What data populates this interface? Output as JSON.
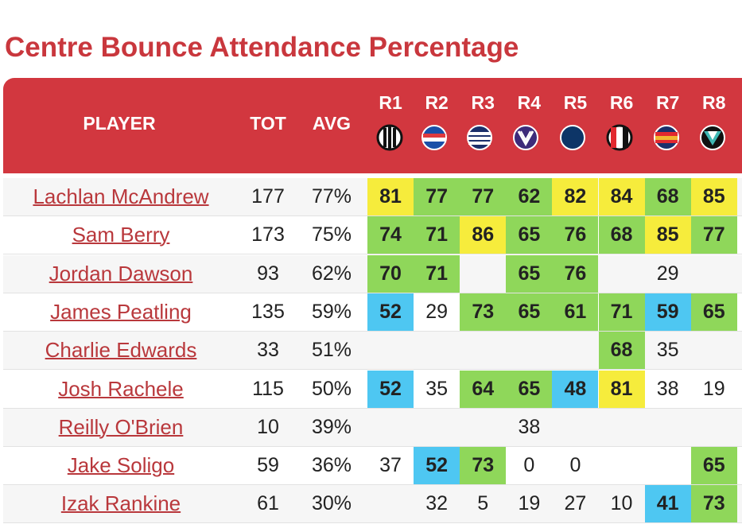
{
  "title": "Centre Bounce Attendance Percentage",
  "table": {
    "header": {
      "player": "PLAYER",
      "tot": "TOT",
      "avg": "AVG",
      "rounds": [
        "R1",
        "R2",
        "R3",
        "R4",
        "R5",
        "R6",
        "R7",
        "R8"
      ]
    },
    "rows": [
      {
        "player": "Lachlan McAndrew",
        "tot": 177,
        "avg": "77%",
        "rounds": [
          81,
          77,
          77,
          62,
          82,
          84,
          68,
          85
        ]
      },
      {
        "player": "Sam Berry",
        "tot": 173,
        "avg": "75%",
        "rounds": [
          74,
          71,
          86,
          65,
          76,
          68,
          85,
          77
        ]
      },
      {
        "player": "Jordan Dawson",
        "tot": 93,
        "avg": "62%",
        "rounds": [
          70,
          71,
          null,
          65,
          76,
          null,
          29,
          null
        ]
      },
      {
        "player": "James Peatling",
        "tot": 135,
        "avg": "59%",
        "rounds": [
          52,
          29,
          73,
          65,
          61,
          71,
          59,
          65
        ]
      },
      {
        "player": "Charlie Edwards",
        "tot": 33,
        "avg": "51%",
        "rounds": [
          null,
          null,
          null,
          null,
          null,
          68,
          35,
          null
        ]
      },
      {
        "player": "Josh Rachele",
        "tot": 115,
        "avg": "50%",
        "rounds": [
          52,
          35,
          64,
          65,
          48,
          81,
          38,
          19
        ]
      },
      {
        "player": "Reilly O'Brien",
        "tot": 10,
        "avg": "39%",
        "rounds": [
          null,
          null,
          null,
          38,
          null,
          null,
          null,
          null
        ]
      },
      {
        "player": "Jake Soligo",
        "tot": 59,
        "avg": "36%",
        "rounds": [
          37,
          52,
          73,
          0,
          0,
          null,
          null,
          65
        ]
      },
      {
        "player": "Izak Rankine",
        "tot": 61,
        "avg": "30%",
        "rounds": [
          null,
          32,
          5,
          19,
          27,
          10,
          41,
          73
        ]
      }
    ]
  }
}
